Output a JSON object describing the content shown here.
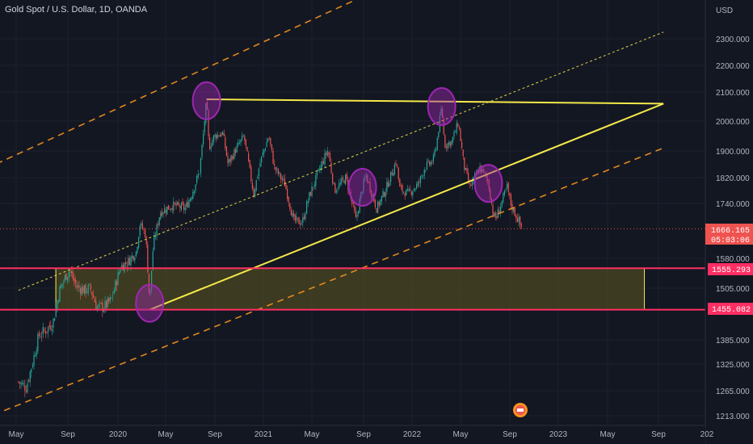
{
  "header": {
    "title": "Gold Spot / U.S. Dollar, 1D, OANDA"
  },
  "axis": {
    "currency": "USD",
    "y_ticks": [
      "2300.000",
      "2200.000",
      "2100.000",
      "2000.000",
      "1900.000",
      "1820.000",
      "1740.000",
      "1580.000",
      "1505.000",
      "1385.000",
      "1325.000",
      "1265.000",
      "1213.000"
    ],
    "x_ticks": [
      "May",
      "Sep",
      "2020",
      "May",
      "Sep",
      "2021",
      "May",
      "Sep",
      "2022",
      "May",
      "Sep",
      "2023",
      "May",
      "Sep",
      "202"
    ]
  },
  "price_tags": {
    "last_price": "1666.165",
    "countdown": "05:03:06",
    "upper_level": "1555.293",
    "lower_level": "1455.082"
  },
  "colors": {
    "background": "#131722",
    "up_candle": "#26a69a",
    "down_candle": "#ef5350",
    "trendline": "#f5e94a",
    "channel": "#f7931e",
    "level": "#ff2e63",
    "zone": "#8a7a1e",
    "marker": "#9c27b0"
  },
  "chart_data": {
    "type": "candlestick",
    "title": "Gold Spot / U.S. Dollar, 1D, OANDA",
    "x_ticks": [
      "May",
      "Sep",
      "2020",
      "May",
      "Sep",
      "2021",
      "May",
      "Sep",
      "2022",
      "May",
      "Sep",
      "2023",
      "May",
      "Sep",
      "202"
    ],
    "y_unit": "USD",
    "y_ticks": [
      2300,
      2200,
      2100,
      2000,
      1900,
      1820,
      1740,
      1580,
      1505,
      1385,
      1325,
      1265,
      1213
    ],
    "last_price": 1666.165,
    "close_path": [
      [
        "2019-05-01",
        1285
      ],
      [
        "2019-05-20",
        1272
      ],
      [
        "2019-06-05",
        1330
      ],
      [
        "2019-06-20",
        1395
      ],
      [
        "2019-07-10",
        1410
      ],
      [
        "2019-07-25",
        1425
      ],
      [
        "2019-08-10",
        1500
      ],
      [
        "2019-08-25",
        1535
      ],
      [
        "2019-09-04",
        1550
      ],
      [
        "2019-09-20",
        1510
      ],
      [
        "2019-10-10",
        1500
      ],
      [
        "2019-10-25",
        1505
      ],
      [
        "2019-11-10",
        1460
      ],
      [
        "2019-11-28",
        1462
      ],
      [
        "2019-12-15",
        1476
      ],
      [
        "2020-01-08",
        1560
      ],
      [
        "2020-01-25",
        1570
      ],
      [
        "2020-02-15",
        1600
      ],
      [
        "2020-02-24",
        1680
      ],
      [
        "2020-03-09",
        1650
      ],
      [
        "2020-03-19",
        1470
      ],
      [
        "2020-03-28",
        1620
      ],
      [
        "2020-04-14",
        1715
      ],
      [
        "2020-05-15",
        1735
      ],
      [
        "2020-06-15",
        1725
      ],
      [
        "2020-07-01",
        1770
      ],
      [
        "2020-07-20",
        1840
      ],
      [
        "2020-07-28",
        1940
      ],
      [
        "2020-08-06",
        2070
      ],
      [
        "2020-08-12",
        1910
      ],
      [
        "2020-08-25",
        1950
      ],
      [
        "2020-09-15",
        1960
      ],
      [
        "2020-09-28",
        1860
      ],
      [
        "2020-10-15",
        1900
      ],
      [
        "2020-11-06",
        1950
      ],
      [
        "2020-11-15",
        1880
      ],
      [
        "2020-11-30",
        1770
      ],
      [
        "2020-12-15",
        1860
      ],
      [
        "2021-01-06",
        1950
      ],
      [
        "2021-01-20",
        1850
      ],
      [
        "2021-02-15",
        1800
      ],
      [
        "2021-03-08",
        1690
      ],
      [
        "2021-03-30",
        1685
      ],
      [
        "2021-04-15",
        1760
      ],
      [
        "2021-05-10",
        1840
      ],
      [
        "2021-06-01",
        1905
      ],
      [
        "2021-06-17",
        1780
      ],
      [
        "2021-07-15",
        1820
      ],
      [
        "2021-08-09",
        1690
      ],
      [
        "2021-08-25",
        1790
      ],
      [
        "2021-09-03",
        1825
      ],
      [
        "2021-09-29",
        1725
      ],
      [
        "2021-10-20",
        1780
      ],
      [
        "2021-11-16",
        1870
      ],
      [
        "2021-11-25",
        1785
      ],
      [
        "2021-12-15",
        1770
      ],
      [
        "2022-01-10",
        1800
      ],
      [
        "2022-01-25",
        1850
      ],
      [
        "2022-02-15",
        1870
      ],
      [
        "2022-02-24",
        1930
      ],
      [
        "2022-03-08",
        2050
      ],
      [
        "2022-03-15",
        1920
      ],
      [
        "2022-04-01",
        1930
      ],
      [
        "2022-04-18",
        1995
      ],
      [
        "2022-05-01",
        1860
      ],
      [
        "2022-05-16",
        1790
      ],
      [
        "2022-06-10",
        1850
      ],
      [
        "2022-06-30",
        1810
      ],
      [
        "2022-07-14",
        1700
      ],
      [
        "2022-07-21",
        1700
      ],
      [
        "2022-08-16",
        1790
      ],
      [
        "2022-08-26",
        1735
      ],
      [
        "2022-09-13",
        1690
      ],
      [
        "2022-09-21",
        1666.165
      ]
    ],
    "horizontal_levels": [
      1555.293,
      1455.082
    ],
    "zone": {
      "from": "2019-08-01",
      "to": "2023-07-20",
      "low": 1455.082,
      "high": 1555.293
    },
    "trendlines": [
      {
        "from": [
          "2020-08-06",
          2075
        ],
        "to": [
          "2023-09-05",
          2060
        ]
      },
      {
        "from": [
          "2020-03-19",
          1455.082
        ],
        "to": [
          "2023-09-05",
          2060
        ]
      }
    ],
    "channel_lines": [
      {
        "from": [
          "2018-11-01",
          1790
        ],
        "to": [
          "2022-04-15",
          2620
        ]
      },
      {
        "from": [
          "2019-05-01",
          1500
        ],
        "to": [
          "2023-09-05",
          2325
        ]
      },
      {
        "from": [
          "2019-03-01",
          1215
        ],
        "to": [
          "2023-09-05",
          1910
        ]
      }
    ],
    "markers": [
      "2020-08-06",
      "2020-03-19",
      "2021-08-25",
      "2022-03-08",
      "2022-07-01"
    ]
  }
}
